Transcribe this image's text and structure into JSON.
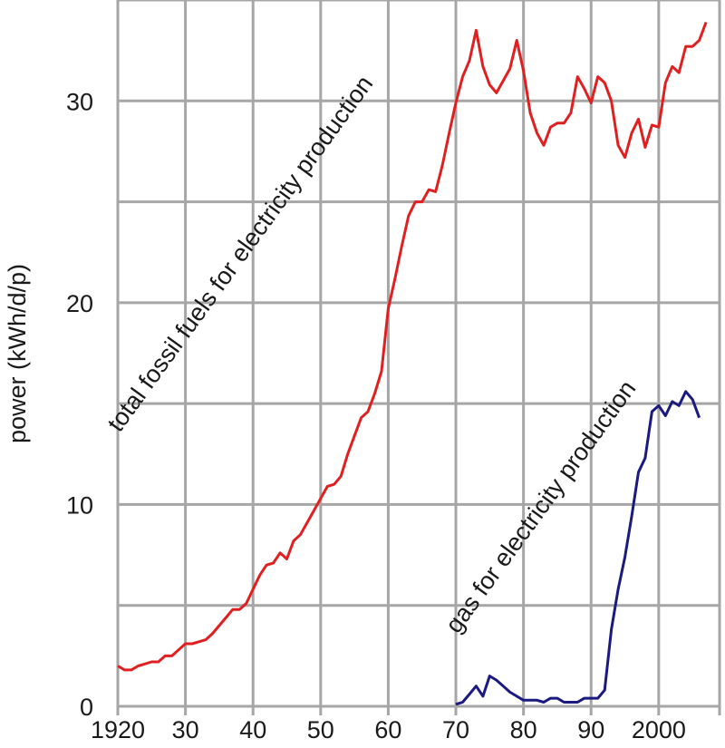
{
  "chart_data": {
    "type": "line",
    "title": "",
    "xlabel": "",
    "ylabel": "power (kWh/d/p)",
    "xlim": [
      1920,
      2009
    ],
    "ylim": [
      0,
      35
    ],
    "grid": true,
    "legend": "none",
    "x_ticks": [
      {
        "value": 1920,
        "label": "1920"
      },
      {
        "value": 1930,
        "label": "30"
      },
      {
        "value": 1940,
        "label": "40"
      },
      {
        "value": 1950,
        "label": "50"
      },
      {
        "value": 1960,
        "label": "60"
      },
      {
        "value": 1970,
        "label": "70"
      },
      {
        "value": 1980,
        "label": "80"
      },
      {
        "value": 1990,
        "label": "90"
      },
      {
        "value": 2000,
        "label": "2000"
      }
    ],
    "y_ticks": [
      {
        "value": 0,
        "label": "0"
      },
      {
        "value": 10,
        "label": "10"
      },
      {
        "value": 20,
        "label": "20"
      },
      {
        "value": 30,
        "label": "30"
      }
    ],
    "x_gridlines": [
      1920,
      1930,
      1940,
      1950,
      1960,
      1970,
      1980,
      1990,
      2000
    ],
    "y_gridlines": [
      0,
      5,
      10,
      15,
      20,
      25,
      30,
      35
    ],
    "series": [
      {
        "name": "total fossil fuels for electricity production",
        "color": "#e02020",
        "points": [
          [
            1920,
            2.0
          ],
          [
            1921,
            1.8
          ],
          [
            1922,
            1.8
          ],
          [
            1923,
            2.0
          ],
          [
            1924,
            2.1
          ],
          [
            1925,
            2.2
          ],
          [
            1926,
            2.2
          ],
          [
            1927,
            2.5
          ],
          [
            1928,
            2.5
          ],
          [
            1929,
            2.8
          ],
          [
            1930,
            3.1
          ],
          [
            1931,
            3.1
          ],
          [
            1932,
            3.2
          ],
          [
            1933,
            3.3
          ],
          [
            1934,
            3.6
          ],
          [
            1935,
            4.0
          ],
          [
            1936,
            4.4
          ],
          [
            1937,
            4.8
          ],
          [
            1938,
            4.8
          ],
          [
            1939,
            5.1
          ],
          [
            1940,
            5.8
          ],
          [
            1941,
            6.5
          ],
          [
            1942,
            7.0
          ],
          [
            1943,
            7.1
          ],
          [
            1944,
            7.6
          ],
          [
            1945,
            7.3
          ],
          [
            1946,
            8.2
          ],
          [
            1947,
            8.5
          ],
          [
            1948,
            9.1
          ],
          [
            1949,
            9.7
          ],
          [
            1950,
            10.3
          ],
          [
            1951,
            10.9
          ],
          [
            1952,
            11.0
          ],
          [
            1953,
            11.4
          ],
          [
            1954,
            12.5
          ],
          [
            1955,
            13.4
          ],
          [
            1956,
            14.3
          ],
          [
            1957,
            14.6
          ],
          [
            1958,
            15.5
          ],
          [
            1959,
            16.6
          ],
          [
            1960,
            19.7
          ],
          [
            1961,
            21.2
          ],
          [
            1962,
            22.8
          ],
          [
            1963,
            24.3
          ],
          [
            1964,
            25.0
          ],
          [
            1965,
            25.0
          ],
          [
            1966,
            25.6
          ],
          [
            1967,
            25.5
          ],
          [
            1968,
            26.8
          ],
          [
            1969,
            28.4
          ],
          [
            1970,
            29.9
          ],
          [
            1971,
            31.2
          ],
          [
            1972,
            32.0
          ],
          [
            1973,
            33.5
          ],
          [
            1974,
            31.7
          ],
          [
            1975,
            30.8
          ],
          [
            1976,
            30.4
          ],
          [
            1977,
            31.0
          ],
          [
            1978,
            31.6
          ],
          [
            1979,
            33.0
          ],
          [
            1980,
            31.5
          ],
          [
            1981,
            29.4
          ],
          [
            1982,
            28.4
          ],
          [
            1983,
            27.8
          ],
          [
            1984,
            28.7
          ],
          [
            1985,
            28.9
          ],
          [
            1986,
            28.9
          ],
          [
            1987,
            29.4
          ],
          [
            1988,
            31.2
          ],
          [
            1989,
            30.6
          ],
          [
            1990,
            29.9
          ],
          [
            1991,
            31.2
          ],
          [
            1992,
            30.9
          ],
          [
            1993,
            30.0
          ],
          [
            1994,
            27.8
          ],
          [
            1995,
            27.2
          ],
          [
            1996,
            28.4
          ],
          [
            1997,
            29.1
          ],
          [
            1998,
            27.7
          ],
          [
            1999,
            28.8
          ],
          [
            2000,
            28.7
          ],
          [
            2001,
            30.9
          ],
          [
            2002,
            31.7
          ],
          [
            2003,
            31.4
          ],
          [
            2004,
            32.7
          ],
          [
            2005,
            32.7
          ],
          [
            2006,
            33.0
          ],
          [
            2007,
            33.9
          ]
        ]
      },
      {
        "name": "gas for electricity production",
        "color": "#1a1a80",
        "points": [
          [
            1970,
            0.1
          ],
          [
            1971,
            0.2
          ],
          [
            1972,
            0.6
          ],
          [
            1973,
            1.0
          ],
          [
            1974,
            0.5
          ],
          [
            1975,
            1.5
          ],
          [
            1976,
            1.3
          ],
          [
            1977,
            1.0
          ],
          [
            1978,
            0.7
          ],
          [
            1979,
            0.5
          ],
          [
            1980,
            0.3
          ],
          [
            1981,
            0.3
          ],
          [
            1982,
            0.3
          ],
          [
            1983,
            0.2
          ],
          [
            1984,
            0.4
          ],
          [
            1985,
            0.4
          ],
          [
            1986,
            0.2
          ],
          [
            1987,
            0.2
          ],
          [
            1988,
            0.2
          ],
          [
            1989,
            0.4
          ],
          [
            1990,
            0.4
          ],
          [
            1991,
            0.4
          ],
          [
            1992,
            0.8
          ],
          [
            1993,
            3.8
          ],
          [
            1994,
            5.8
          ],
          [
            1995,
            7.4
          ],
          [
            1996,
            9.4
          ],
          [
            1997,
            11.6
          ],
          [
            1998,
            12.3
          ],
          [
            1999,
            14.6
          ],
          [
            2000,
            14.9
          ],
          [
            2001,
            14.4
          ],
          [
            2002,
            15.1
          ],
          [
            2003,
            14.9
          ],
          [
            2004,
            15.6
          ],
          [
            2005,
            15.2
          ],
          [
            2006,
            14.3
          ]
        ]
      }
    ],
    "annotations": [
      {
        "text": "total fossil fuels for electricity production",
        "series": 0
      },
      {
        "text": "gas for electricity production",
        "series": 1
      }
    ]
  }
}
